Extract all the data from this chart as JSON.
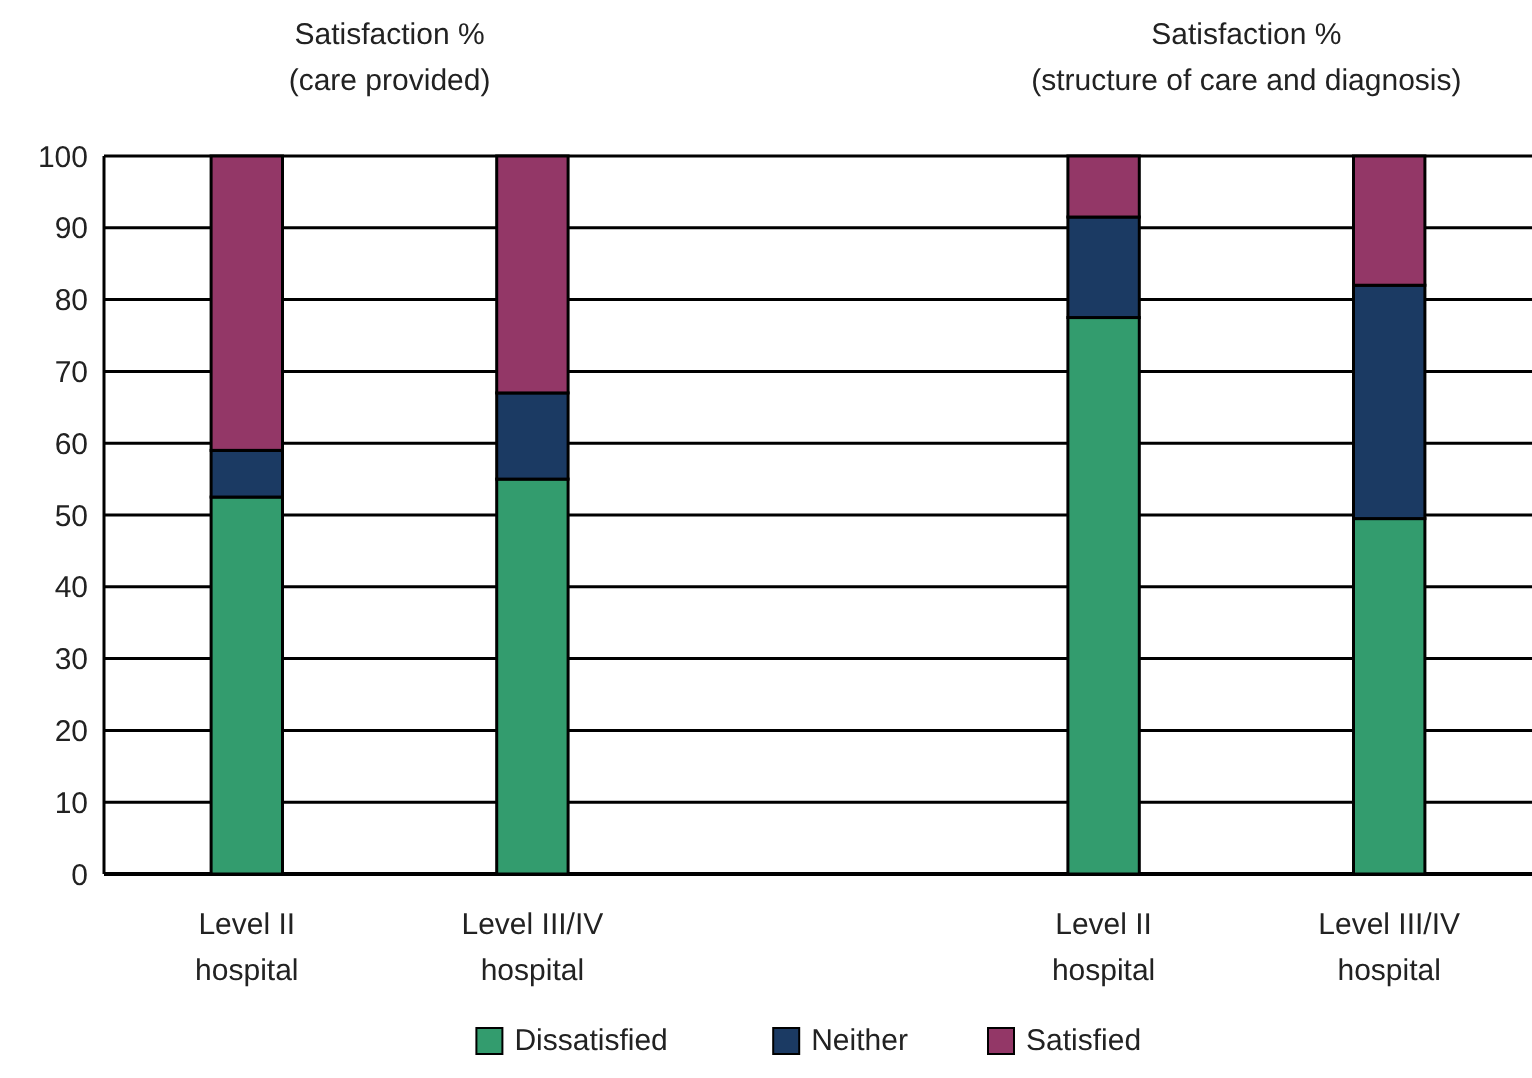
{
  "chart_data": {
    "type": "bar",
    "stacked": true,
    "categories": [
      "Level II hospital",
      "Level III/IV hospital",
      null,
      "Level II hospital",
      "Level III/IV hospital"
    ],
    "series": [
      {
        "name": "Dissatisfied",
        "color": "#339c6e",
        "values": [
          52.5,
          55,
          null,
          77.5,
          49.5
        ]
      },
      {
        "name": "Neither",
        "color": "#1b3a63",
        "values": [
          6.5,
          12,
          null,
          14,
          32.5
        ]
      },
      {
        "name": "Satisfied",
        "color": "#933767",
        "values": [
          41,
          33,
          null,
          8.5,
          18
        ]
      }
    ],
    "ylim": [
      0,
      100
    ],
    "yticks": [
      0,
      10,
      20,
      30,
      40,
      50,
      60,
      70,
      80,
      90,
      100
    ],
    "grid": "y",
    "legend": "bottom",
    "annotations": [
      "Satisfaction % (care provided)",
      "Satisfaction % (structure of care and diagnosis)"
    ]
  }
}
